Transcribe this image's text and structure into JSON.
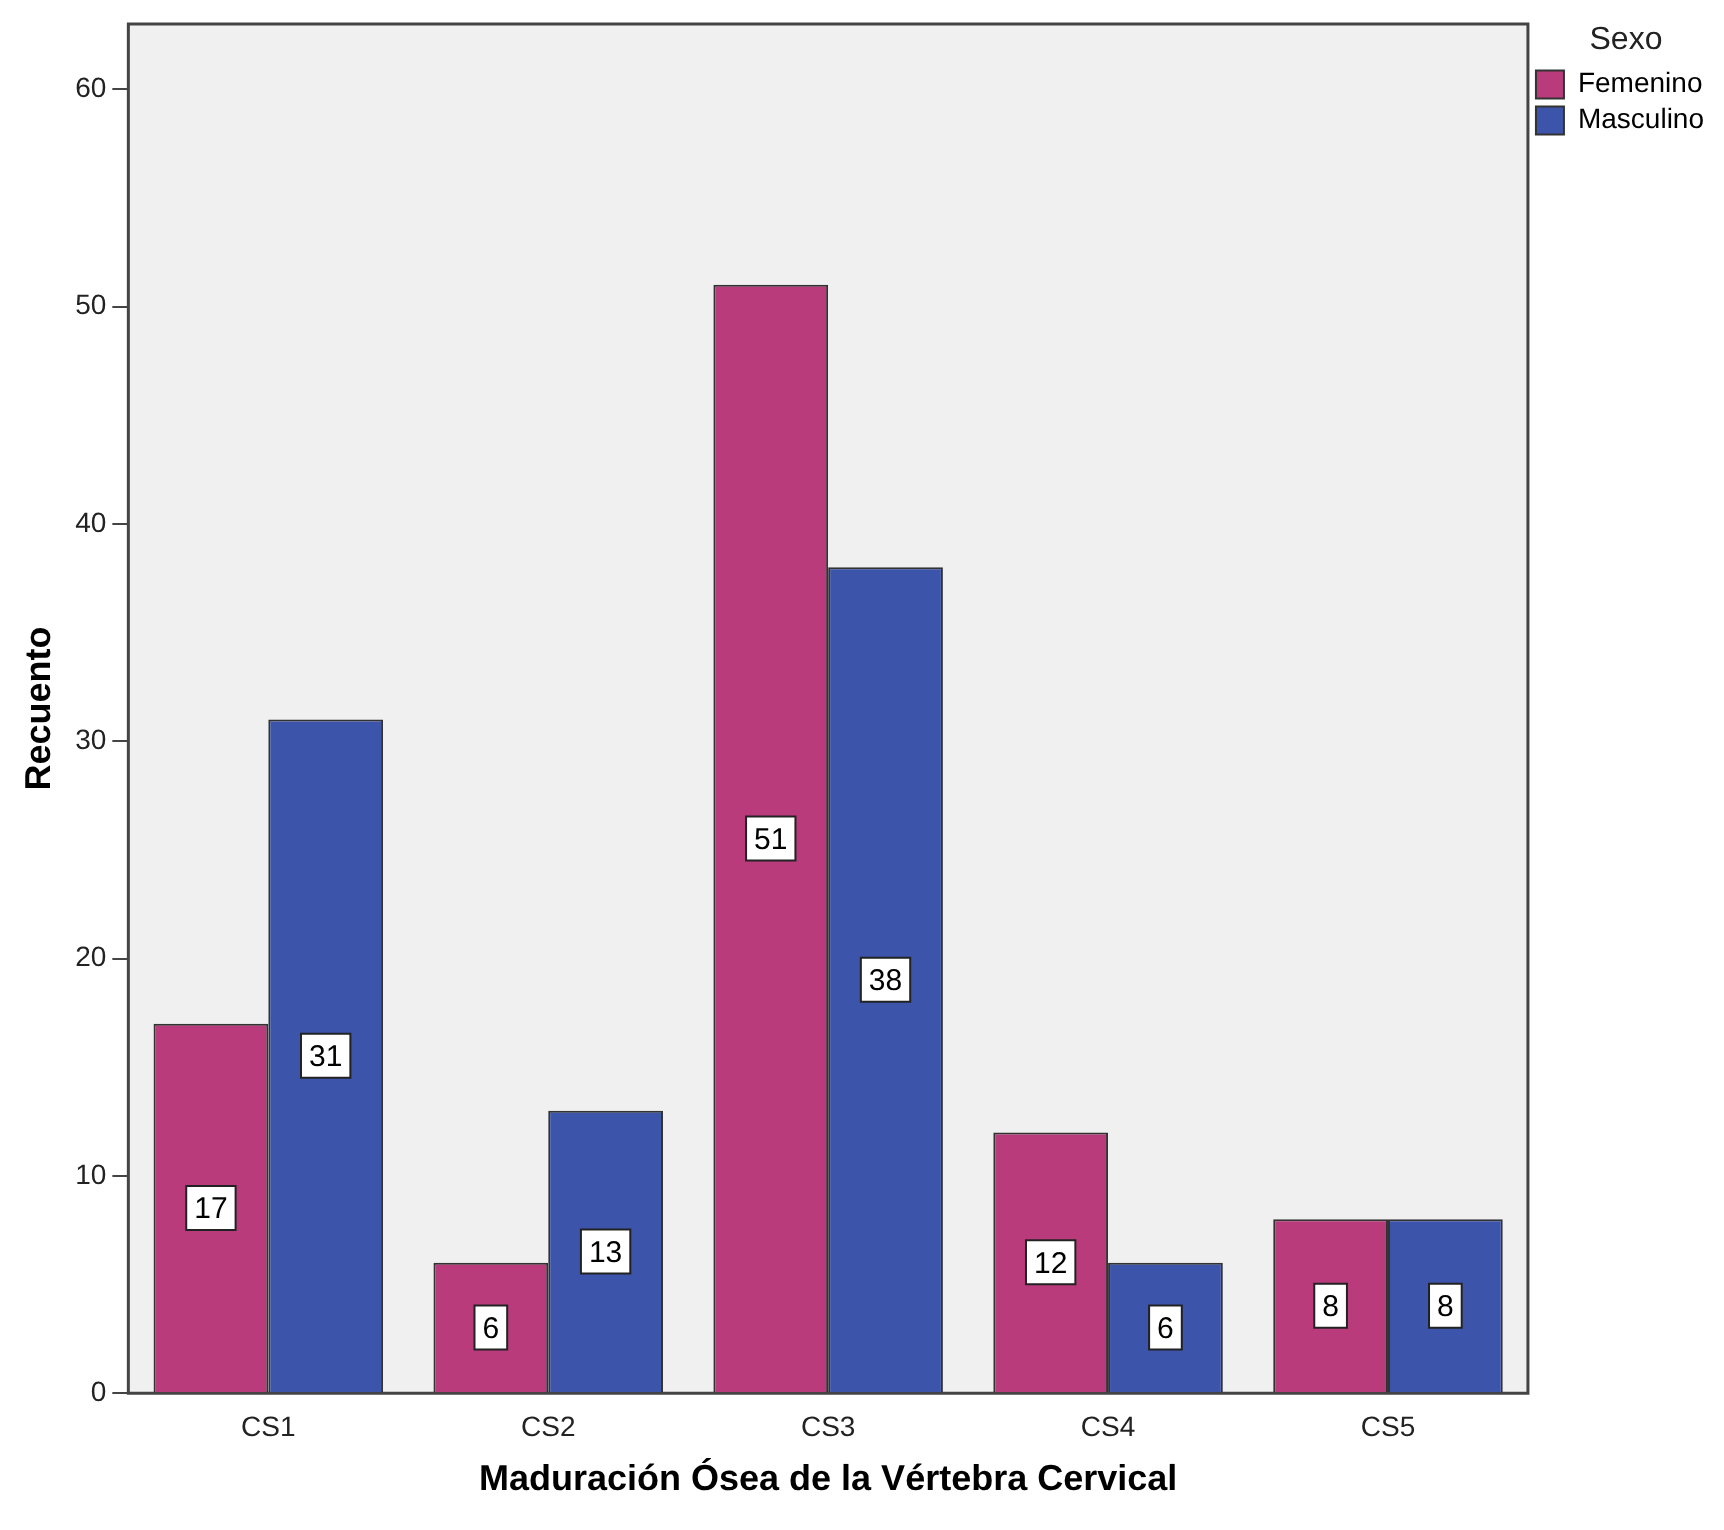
{
  "chart_data": {
    "type": "bar",
    "xlabel": "Maduración Ósea de la Vértebra Cervical",
    "ylabel": "Recuento",
    "legend_title": "Sexo",
    "categories": [
      "CS1",
      "CS2",
      "CS3",
      "CS4",
      "CS5"
    ],
    "series": [
      {
        "name": "Femenino",
        "color": "#b93b7c",
        "values": [
          17,
          6,
          51,
          12,
          8
        ]
      },
      {
        "name": "Masculino",
        "color": "#3c55aa",
        "values": [
          31,
          13,
          38,
          6,
          8
        ]
      }
    ],
    "ylim": [
      0,
      63
    ],
    "yticks": [
      0,
      10,
      20,
      30,
      40,
      50,
      60
    ],
    "grid": false,
    "legend": "top right",
    "data_labels": true
  }
}
